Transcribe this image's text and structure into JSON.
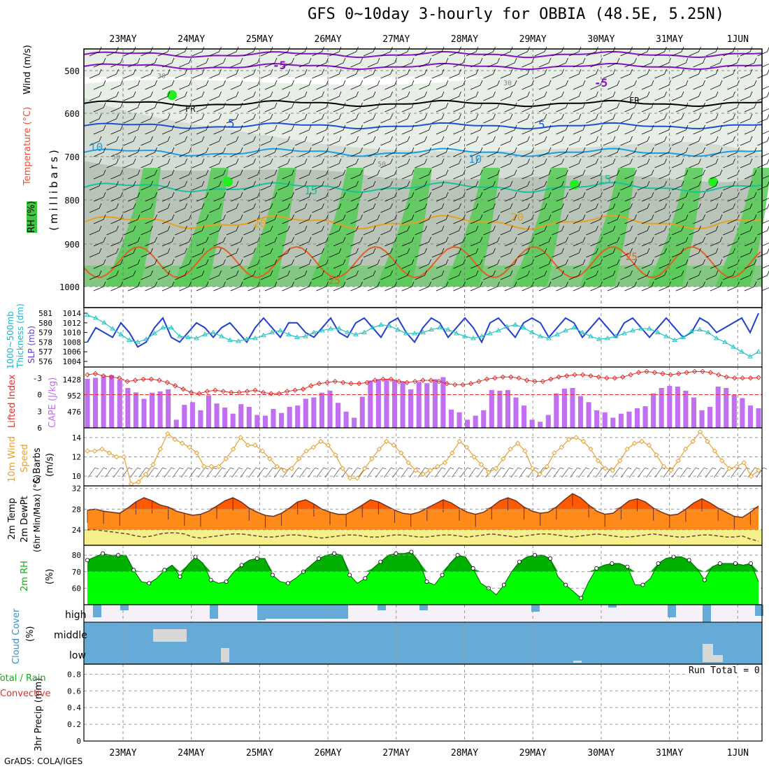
{
  "title": "GFS 0~10day 3-hourly for OBBIA (48.5E, 5.25N)",
  "credit": "GrADS: COLA/IGES",
  "dates": [
    "23MAY",
    "24MAY",
    "25MAY",
    "26MAY",
    "27MAY",
    "28MAY",
    "29MAY",
    "30MAY",
    "31MAY",
    "1JUN"
  ],
  "colors": {
    "rh_green": "#55cc55",
    "rh_gray": "#b9c4b9",
    "rh_light": "#e7efe7",
    "temp_purple": "#8a10c8",
    "temp_blue": "#1f4fd8",
    "temp_cyan": "#1a9ee8",
    "temp_teal": "#17c29a",
    "temp_orange": "#e8a020",
    "temp_red": "#e06020",
    "slp_blue": "#1f3fd0",
    "thick_cyan": "#22c4c4",
    "li_red": "#dd3030",
    "cape_violet": "#c070f0",
    "wind_orange": "#e8a030",
    "t2m_fill": "#ff8a1a",
    "t2m_high": "#ff5a00",
    "dew_fill": "#f6f08a",
    "rh_dark": "#00b000",
    "rh_mid": "#00ff00",
    "cloud_blue": "#66aad8",
    "cloud_gray": "#d8d8d8"
  },
  "labels": {
    "upper_wind": "Wind (m/s)",
    "upper_temp": "Temperature (°C)",
    "upper_rh": "RH (%)",
    "upper_mb": "(millibars)",
    "thick": "1000~500mb",
    "thick2": "Thickness (dm)",
    "slp": "SLP (mb)",
    "li": "Lifted Index",
    "cape": "CAPE (J/kg)",
    "wind10a": "10m Wind",
    "wind10b": "Speed",
    "wind10c": "& Barbs",
    "wind10d": "(m/s)",
    "t2ma": "2m Temp",
    "t2mb": "2m DewPt",
    "t2mc": "(6hr Min/Max) (°C)",
    "rh2a": "2m RH",
    "rh2b": "(%)",
    "cc": "Cloud Cover",
    "ccp": "(%)",
    "pr1": "Total / Rain",
    "pr2": "Convective",
    "pr3": "3hr Precip (mm)",
    "high": "high",
    "middle": "middle",
    "low": "low",
    "run_total": "Run Total = 0"
  },
  "chart_data": [
    {
      "type": "contour",
      "title": "Upper air",
      "ylabel": "millibars",
      "levels": [
        500,
        600,
        700,
        800,
        900,
        1000
      ],
      "contour_labels": [
        "-5",
        "FR",
        "5",
        "10",
        "15",
        "20",
        "25",
        "30",
        "50"
      ]
    },
    {
      "type": "line",
      "name": "SLP / Thickness",
      "slp_ticks": [
        1004,
        1006,
        1008,
        1010,
        1012,
        1014
      ],
      "thick_ticks": [
        576,
        577,
        578,
        579,
        580,
        581
      ],
      "slp": [
        1008,
        1011,
        1010,
        1009,
        1012,
        1010,
        1007,
        1008,
        1011,
        1013,
        1009,
        1008,
        1010,
        1012,
        1011,
        1009,
        1011,
        1012,
        1010,
        1008,
        1011,
        1013,
        1011,
        1009,
        1012,
        1012,
        1010,
        1009,
        1011,
        1013,
        1010,
        1009,
        1012,
        1013,
        1011,
        1009,
        1012,
        1013,
        1010,
        1008,
        1011,
        1013,
        1012,
        1009,
        1011,
        1013,
        1011,
        1008,
        1012,
        1013,
        1011,
        1009,
        1012,
        1013,
        1012,
        1009,
        1011,
        1013,
        1012,
        1009,
        1011,
        1013,
        1011,
        1009,
        1012,
        1013,
        1011,
        1009,
        1011,
        1013,
        1011,
        1009,
        1010,
        1013,
        1012,
        1010,
        1011,
        1012,
        1013,
        1010,
        1014
      ],
      "thick": [
        580.8,
        580.5,
        580.0,
        579.4,
        578.8,
        578.2,
        578.0,
        578.3,
        578.9,
        579.5,
        579.5,
        578.6,
        578.5,
        578.4,
        578.8,
        579.0,
        578.6,
        578.2,
        578.1,
        578.3,
        578.4,
        578.7,
        579.0,
        579.2,
        578.8,
        578.5,
        578.6,
        579.0,
        579.2,
        579.4,
        579.4,
        579.0,
        578.8,
        579.0,
        579.5,
        579.8,
        579.7,
        579.3,
        578.9,
        578.9,
        579.0,
        579.3,
        579.5,
        579.3,
        578.9,
        578.6,
        578.4,
        578.6,
        578.9,
        579.2,
        579.6,
        579.8,
        579.5,
        579.0,
        578.6,
        578.4,
        578.8,
        579.2,
        579.5,
        579.0,
        578.6,
        578.3,
        578.4,
        578.6,
        578.9,
        579.2,
        579.4,
        579.4,
        579.0,
        578.6,
        578.2,
        578.5,
        579.1,
        579.3,
        579.0,
        578.4,
        578.0,
        577.5,
        577.0,
        576.5,
        577.0
      ]
    },
    {
      "type": "bar",
      "name": "CAPE / Lifted Index",
      "cape_ticks": [
        476,
        952,
        1428
      ],
      "li_ticks": [
        "-3",
        "0",
        "3",
        "6"
      ],
      "cape": [
        1450,
        1480,
        1520,
        1560,
        1420,
        1180,
        1050,
        860,
        1040,
        1080,
        1140,
        240,
        680,
        760,
        520,
        960,
        720,
        600,
        420,
        700,
        620,
        380,
        360,
        560,
        440,
        620,
        660,
        860,
        900,
        1040,
        1100,
        740,
        480,
        300,
        920,
        1400,
        1440,
        1440,
        1420,
        1380,
        1140,
        1360,
        1320,
        1440,
        1500,
        540,
        460,
        240,
        360,
        520,
        1120,
        1100,
        1120,
        900,
        660,
        240,
        180,
        380,
        1020,
        1160,
        1180,
        940,
        760,
        520,
        460,
        300,
        420,
        480,
        580,
        640,
        1020,
        1180,
        1240,
        1220,
        1100,
        900,
        520,
        620,
        1220,
        1180,
        980,
        880,
        660,
        580
      ],
      "li": [
        -3.6,
        -3.8,
        -3.4,
        -3.2,
        -3.0,
        -2.4,
        -2.6,
        -2.8,
        -2.8,
        -2.6,
        -2.2,
        -1.6,
        -1.0,
        -0.4,
        -0.2,
        -0.6,
        -0.8,
        -0.6,
        -0.4,
        -0.4,
        -0.6,
        -0.8,
        -0.4,
        -0.2,
        -0.2,
        -0.6,
        -0.8,
        -1.0,
        -1.6,
        -2.0,
        -2.2,
        -2.4,
        -2.2,
        -2.0,
        -2.0,
        -2.2,
        -2.6,
        -2.8,
        -2.8,
        -2.4,
        -2.2,
        -2.4,
        -2.6,
        -2.6,
        -2.4,
        -2.0,
        -1.8,
        -1.8,
        -2.0,
        -2.4,
        -2.8,
        -3.0,
        -3.2,
        -3.2,
        -3.0,
        -2.6,
        -2.4,
        -2.4,
        -2.8,
        -3.2,
        -3.4,
        -3.6,
        -3.6,
        -3.4,
        -3.2,
        -3.0,
        -3.0,
        -3.2,
        -3.6,
        -4.0,
        -4.2,
        -4.0,
        -3.8,
        -3.6,
        -3.8,
        -4.0,
        -4.2,
        -4.2,
        -4.0,
        -3.6,
        -3.2,
        -3.0,
        -3.0,
        -3.0,
        -3.1
      ]
    },
    {
      "type": "line",
      "name": "10m Wind",
      "yticks": [
        10,
        12,
        14
      ],
      "speed": [
        12.6,
        12.6,
        12.8,
        12.4,
        12.0,
        12.0,
        9.2,
        9.4,
        10.2,
        11.2,
        12.8,
        14.4,
        13.8,
        13.4,
        13.0,
        12.4,
        11.0,
        11.0,
        11.0,
        11.8,
        12.8,
        14.0,
        13.2,
        13.2,
        12.6,
        11.8,
        11.0,
        10.6,
        10.8,
        11.8,
        12.6,
        13.0,
        13.6,
        13.2,
        12.2,
        10.8,
        9.8,
        9.8,
        10.8,
        11.8,
        12.8,
        13.6,
        13.2,
        12.4,
        11.4,
        10.6,
        10.2,
        10.6,
        11.0,
        11.4,
        12.4,
        13.6,
        13.0,
        12.0,
        11.2,
        10.4,
        10.8,
        11.8,
        12.8,
        13.4,
        12.6,
        10.8,
        10.2,
        11.0,
        12.4,
        13.0,
        13.8,
        14.0,
        13.6,
        12.8,
        11.6,
        10.8,
        10.6,
        11.6,
        12.8,
        13.4,
        13.6,
        13.2,
        12.2,
        11.0,
        10.6,
        11.6,
        12.8,
        13.6,
        14.6,
        13.6,
        12.6,
        11.6,
        10.8,
        11.0,
        11.4,
        10.0,
        10.6
      ]
    },
    {
      "type": "area",
      "name": "2m Temp / DewPt",
      "yticks": [
        24,
        28,
        32
      ],
      "temp": [
        27.8,
        28.0,
        27.6,
        27.4,
        27.2,
        28.2,
        29.4,
        30.2,
        29.6,
        28.8,
        28.4,
        27.6,
        27.2,
        26.8,
        27.0,
        27.6,
        28.6,
        29.6,
        30.2,
        29.4,
        28.2,
        27.4,
        26.8,
        26.6,
        27.2,
        28.2,
        29.4,
        29.8,
        29.0,
        28.0,
        27.4,
        27.0,
        27.0,
        27.8,
        28.8,
        29.8,
        29.4,
        28.6,
        27.8,
        27.2,
        27.0,
        27.4,
        28.2,
        29.0,
        29.8,
        29.2,
        28.2,
        27.4,
        27.0,
        27.4,
        28.4,
        29.6,
        30.2,
        29.6,
        28.4,
        27.6,
        27.2,
        27.4,
        28.4,
        29.8,
        31.0,
        30.2,
        28.8,
        27.6,
        27.0,
        27.2,
        28.4,
        29.6,
        30.0,
        29.4,
        28.2,
        27.4,
        26.8,
        27.0,
        28.0,
        29.2,
        30.0,
        29.2,
        28.2,
        27.4,
        26.6,
        26.4,
        27.4,
        28.6
      ],
      "dew": [
        24.0,
        24.0,
        23.8,
        23.6,
        23.4,
        23.2,
        22.8,
        22.6,
        22.8,
        23.2,
        23.4,
        23.4,
        23.2,
        22.6,
        22.4,
        22.6,
        22.8,
        23.0,
        23.2,
        23.2,
        23.0,
        22.8,
        22.6,
        22.6,
        22.8,
        23.0,
        23.0,
        22.8,
        22.6,
        22.4,
        22.6,
        22.8,
        23.0,
        23.0,
        22.8,
        22.6,
        22.6,
        22.8,
        23.0,
        23.0,
        22.8,
        22.6,
        22.6,
        22.8,
        23.0,
        23.0,
        22.8,
        22.6,
        22.8,
        23.0,
        23.2,
        23.0,
        22.8,
        22.6,
        22.8,
        23.0,
        23.2,
        23.2,
        23.0,
        22.8,
        22.6,
        22.8,
        23.0,
        23.2,
        23.0,
        22.8,
        22.6,
        22.6,
        22.8,
        23.0,
        23.2,
        23.0,
        22.8,
        22.6,
        22.6,
        22.8,
        23.0,
        23.0,
        22.8,
        22.6,
        22.6,
        22.8,
        22.2,
        21.8
      ]
    },
    {
      "type": "area",
      "name": "2m RH",
      "yticks": [
        60,
        70,
        80
      ],
      "rh": [
        77,
        79,
        81,
        80,
        80,
        80,
        71,
        64,
        63,
        66,
        71,
        74,
        67,
        74,
        79,
        75,
        65,
        63,
        64,
        70,
        74,
        77,
        78,
        78,
        68,
        64,
        63,
        66,
        70,
        74,
        78,
        80,
        81,
        80,
        68,
        63,
        66,
        72,
        76,
        80,
        81,
        81,
        82,
        76,
        64,
        62,
        68,
        75,
        80,
        79,
        72,
        63,
        60,
        56,
        62,
        70,
        76,
        79,
        80,
        80,
        78,
        67,
        62,
        58,
        54,
        64,
        72,
        74,
        75,
        75,
        73,
        62,
        62,
        66,
        75,
        78,
        79,
        79,
        77,
        72,
        65,
        73,
        75,
        75,
        75,
        74,
        75,
        64
      ]
    },
    {
      "type": "bar",
      "name": "Cloud Cover",
      "levels": [
        "high",
        "middle",
        "low"
      ]
    },
    {
      "type": "bar",
      "name": "3hr Precip",
      "yticks": [
        0,
        0.2,
        0.4,
        0.6,
        0.8
      ],
      "values": [],
      "run_total": 0
    }
  ]
}
